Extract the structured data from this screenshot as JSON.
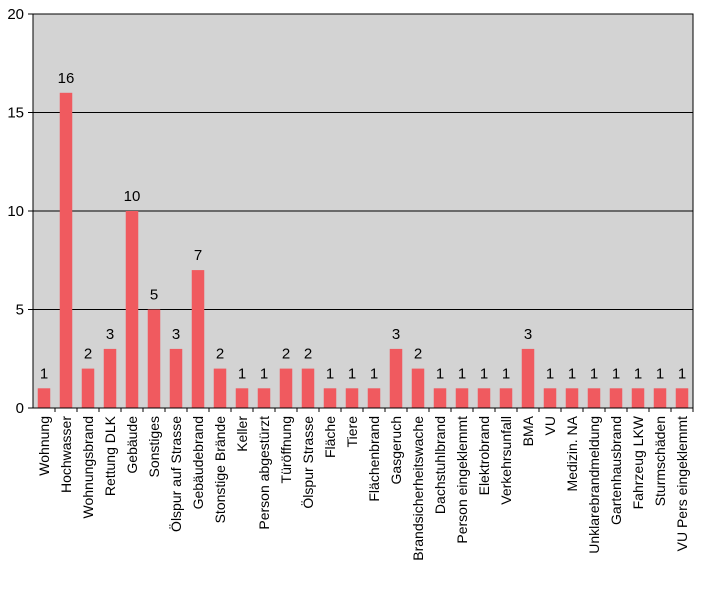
{
  "chart_data": {
    "type": "bar",
    "title": "",
    "xlabel": "",
    "ylabel": "",
    "ylim": [
      0,
      20
    ],
    "yticks": [
      0,
      5,
      10,
      15,
      20
    ],
    "grid": true,
    "background": "#d3d3d3",
    "bar_color": "#f05a5f",
    "categories": [
      "Wohnung",
      "Hochwasser",
      "Wohnungsbrand",
      "Rettung DLK",
      "Gebäude",
      "Sonstiges",
      "Ölspur auf Strasse",
      "Gebäudebrand",
      "Stonstige Brände",
      "Keller",
      "Person abgestürzt",
      "Türöffnung",
      "Ölspur Strasse",
      "Fläche",
      "Tiere",
      "Flächenbrand",
      "Gasgeruch",
      "Brandsicherheitswache",
      "Dachstuhlbrand",
      "Person eingeklemmt",
      "Elektrobrand",
      "Verkehrsunfall",
      "BMA",
      "VU",
      "Medizin. NA",
      "Unklarebrandmeldung",
      "Gartenhausbrand",
      "Fahrzeug LKW",
      "Sturmschäden",
      "VU Pers eingeklemmt"
    ],
    "values": [
      1,
      16,
      2,
      3,
      10,
      5,
      3,
      7,
      2,
      1,
      1,
      2,
      2,
      1,
      1,
      1,
      3,
      2,
      1,
      1,
      1,
      1,
      3,
      1,
      1,
      1,
      1,
      1,
      1,
      1
    ]
  }
}
